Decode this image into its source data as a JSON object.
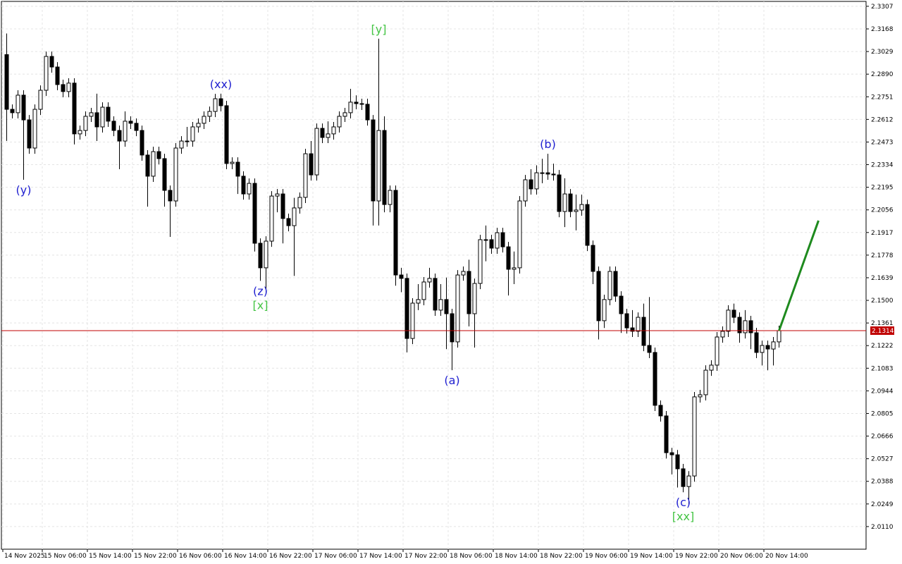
{
  "chart_data": {
    "type": "candlestick",
    "categories": [
      "14 Nov 2025",
      null,
      null,
      null,
      null,
      null,
      null,
      "15 Nov 06:00",
      null,
      null,
      null,
      null,
      null,
      null,
      null,
      "15 Nov 14:00",
      null,
      null,
      null,
      null,
      null,
      null,
      null,
      "15 Nov 22:00",
      null,
      null,
      null,
      null,
      null,
      null,
      null,
      "16 Nov 06:00",
      null,
      null,
      null,
      null,
      null,
      null,
      null,
      "16 Nov 14:00",
      null,
      null,
      null,
      null,
      null,
      null,
      null,
      "16 Nov 22:00",
      null,
      null,
      null,
      null,
      null,
      null,
      null,
      "17 Nov 06:00",
      null,
      null,
      null,
      null,
      null,
      null,
      null,
      "17 Nov 14:00",
      null,
      null,
      null,
      null,
      null,
      null,
      null,
      "17 Nov 22:00",
      null,
      null,
      null,
      null,
      null,
      null,
      null,
      "18 Nov 06:00",
      null,
      null,
      null,
      null,
      null,
      null,
      null,
      "18 Nov 14:00",
      null,
      null,
      null,
      null,
      null,
      null,
      null,
      "18 Nov 22:00",
      null,
      null,
      null,
      null,
      null,
      null,
      null,
      "19 Nov 06:00",
      null,
      null,
      null,
      null,
      null,
      null,
      null,
      "19 Nov 14:00",
      null,
      null,
      null,
      null,
      null,
      null,
      null,
      "19 Nov 22:00",
      null,
      null,
      null,
      null,
      null,
      null,
      null,
      "20 Nov 06:00",
      null,
      null,
      null,
      null,
      null,
      null,
      null,
      "20 Nov 14:00",
      null,
      null
    ],
    "open": [
      2.301,
      2.2674,
      2.2653,
      2.2761,
      2.2609,
      2.2436,
      2.2674,
      2.2791,
      2.2999,
      2.2934,
      2.2826,
      2.2783,
      2.2835,
      2.2523,
      2.2544,
      2.2631,
      2.2653,
      2.2566,
      2.2687,
      2.2601,
      2.2544,
      2.2479,
      2.2601,
      2.2588,
      2.2544,
      2.2393,
      2.2263,
      2.2414,
      2.2371,
      2.2176,
      2.2111,
      2.2436,
      2.2479,
      2.2479,
      2.2566,
      2.2588,
      2.2631,
      2.2661,
      2.2739,
      2.2696,
      2.2341,
      2.2349,
      2.2263,
      2.2154,
      2.2219,
      2.1851,
      2.17,
      2.1864,
      2.2141,
      2.2154,
      2.2003,
      2.1959,
      2.2068,
      2.2133,
      2.2401,
      2.2271,
      2.2557,
      2.2501,
      2.2523,
      2.2566,
      2.2631,
      2.2653,
      2.2718,
      2.2709,
      2.2705,
      2.2609,
      2.2111,
      2.2544,
      2.2089,
      2.2176,
      2.1656,
      2.1635,
      2.1266,
      2.1483,
      2.1505,
      2.1613,
      2.1635,
      2.144,
      2.1505,
      2.1418,
      2.1245,
      2.1656,
      2.1678,
      2.1418,
      2.1604,
      2.1873,
      2.1873,
      2.1821,
      2.1916,
      2.1829,
      2.1691,
      2.17,
      2.2111,
      2.2241,
      2.2185,
      2.2284,
      2.2284,
      2.2276,
      2.2271,
      2.2046,
      2.2154,
      2.2046,
      2.2055,
      2.2089,
      2.1838,
      2.1678,
      2.1375,
      2.1505,
      2.1678,
      2.1526,
      2.1418,
      2.1331,
      2.131,
      2.1396,
      2.1223,
      2.118,
      2.0855,
      2.079,
      2.0564,
      2.0551,
      2.0465,
      2.0356,
      2.0421,
      2.0907,
      2.092,
      2.1071,
      2.1102,
      2.1275,
      2.131,
      2.144,
      2.1396,
      2.1301,
      2.1375,
      2.1301,
      2.118,
      2.1223,
      2.1201,
      2.1245
    ],
    "high": [
      2.314,
      2.2704,
      2.2791,
      2.2791,
      2.2639,
      2.2704,
      2.2821,
      2.3029,
      2.3029,
      2.2964,
      2.2856,
      2.2865,
      2.2865,
      2.2574,
      2.2661,
      2.2683,
      2.277,
      2.2717,
      2.2717,
      2.2631,
      2.2574,
      2.2661,
      2.2631,
      2.2618,
      2.2574,
      2.2423,
      2.2444,
      2.2444,
      2.2401,
      2.2206,
      2.2466,
      2.2509,
      2.2566,
      2.2596,
      2.2618,
      2.2661,
      2.2691,
      2.2769,
      2.277,
      2.2726,
      2.2379,
      2.2379,
      2.2293,
      2.2249,
      2.2249,
      2.1881,
      2.1894,
      2.2171,
      2.2184,
      2.2184,
      2.2033,
      2.213,
      2.2163,
      2.2431,
      2.2479,
      2.2587,
      2.2587,
      2.26,
      2.2596,
      2.2661,
      2.2683,
      2.28,
      2.276,
      2.2739,
      2.2739,
      2.2639,
      2.3108,
      2.2631,
      2.2206,
      2.2206,
      2.17,
      2.1665,
      2.1513,
      2.16,
      2.1643,
      2.17,
      2.1665,
      2.16,
      2.164,
      2.1448,
      2.1686,
      2.1708,
      2.175,
      2.1634,
      2.1903,
      2.196,
      2.1903,
      2.1946,
      2.1946,
      2.1859,
      2.18,
      2.2141,
      2.2271,
      2.2306,
      2.233,
      2.237,
      2.2401,
      2.234,
      2.2301,
      2.225,
      2.2184,
      2.215,
      2.215,
      2.2119,
      2.1868,
      2.1708,
      2.1535,
      2.1708,
      2.1708,
      2.1556,
      2.1448,
      2.144,
      2.1426,
      2.148,
      2.152,
      2.121,
      2.0885,
      2.082,
      2.0594,
      2.0581,
      2.0495,
      2.0451,
      2.0937,
      2.095,
      2.1101,
      2.1132,
      2.1305,
      2.134,
      2.147,
      2.148,
      2.1426,
      2.144,
      2.1405,
      2.1331,
      2.1253,
      2.1253,
      2.1275,
      2.1344
    ],
    "low": [
      2.248,
      2.2618,
      2.2618,
      2.2241,
      2.2401,
      2.2401,
      2.2639,
      2.2756,
      2.2899,
      2.2791,
      2.2748,
      2.2748,
      2.2458,
      2.2488,
      2.2509,
      2.2596,
      2.2479,
      2.2531,
      2.2566,
      2.2509,
      2.2306,
      2.2444,
      2.2553,
      2.2509,
      2.2358,
      2.2076,
      2.2228,
      2.2336,
      2.2076,
      2.189,
      2.2076,
      2.2401,
      2.2444,
      2.2444,
      2.2531,
      2.2553,
      2.2596,
      2.2626,
      2.2661,
      2.2306,
      2.2306,
      2.2154,
      2.2119,
      2.2119,
      2.18,
      2.162,
      2.1548,
      2.1829,
      2.2041,
      2.185,
      2.1924,
      2.165,
      2.2033,
      2.2098,
      2.2236,
      2.2236,
      2.2466,
      2.2466,
      2.2488,
      2.2531,
      2.2596,
      2.2618,
      2.2674,
      2.267,
      2.2574,
      2.196,
      2.196,
      2.2041,
      2.2041,
      2.159,
      2.155,
      2.118,
      2.1231,
      2.144,
      2.147,
      2.1578,
      2.1405,
      2.1405,
      2.12,
      2.1071,
      2.121,
      2.1621,
      2.134,
      2.121,
      2.1569,
      2.174,
      2.1786,
      2.1786,
      2.1794,
      2.153,
      2.16,
      2.1665,
      2.2076,
      2.215,
      2.215,
      2.222,
      2.2241,
      2.2236,
      2.2011,
      2.195,
      2.2011,
      2.193,
      2.202,
      2.1803,
      2.16,
      2.126,
      2.133,
      2.147,
      2.1491,
      2.13,
      2.1296,
      2.1275,
      2.1275,
      2.1188,
      2.1145,
      2.082,
      2.0755,
      2.0529,
      2.043,
      2.035,
      2.0321,
      2.0248,
      2.0386,
      2.0872,
      2.0885,
      2.1036,
      2.1067,
      2.124,
      2.1275,
      2.1361,
      2.124,
      2.1266,
      2.12,
      2.1145,
      2.11,
      2.107,
      2.11,
      2.121
    ],
    "close": [
      2.2674,
      2.2653,
      2.2761,
      2.2609,
      2.2436,
      2.2674,
      2.2791,
      2.2999,
      2.2934,
      2.2826,
      2.2783,
      2.2835,
      2.2523,
      2.2544,
      2.2631,
      2.2653,
      2.2566,
      2.2687,
      2.2601,
      2.2544,
      2.2479,
      2.2601,
      2.2588,
      2.2544,
      2.2393,
      2.2263,
      2.2414,
      2.2371,
      2.2176,
      2.2111,
      2.2436,
      2.2479,
      2.2479,
      2.2566,
      2.2588,
      2.2631,
      2.2661,
      2.2739,
      2.2696,
      2.2341,
      2.2349,
      2.2263,
      2.2154,
      2.2219,
      2.1851,
      2.17,
      2.1864,
      2.2141,
      2.2154,
      2.2003,
      2.1959,
      2.2068,
      2.2133,
      2.2401,
      2.2271,
      2.2557,
      2.2501,
      2.2523,
      2.2566,
      2.2631,
      2.2653,
      2.2718,
      2.2709,
      2.2705,
      2.2609,
      2.2111,
      2.2544,
      2.2089,
      2.2176,
      2.1656,
      2.1635,
      2.1266,
      2.1483,
      2.1505,
      2.1613,
      2.1635,
      2.144,
      2.1505,
      2.1418,
      2.1245,
      2.1656,
      2.1678,
      2.1418,
      2.1604,
      2.1873,
      2.1873,
      2.1821,
      2.1916,
      2.1829,
      2.1691,
      2.17,
      2.2111,
      2.2241,
      2.2185,
      2.2284,
      2.2284,
      2.2276,
      2.2271,
      2.2046,
      2.2154,
      2.2046,
      2.2055,
      2.2089,
      2.1838,
      2.1678,
      2.1375,
      2.1505,
      2.1678,
      2.1526,
      2.1418,
      2.1331,
      2.131,
      2.1396,
      2.1223,
      2.118,
      2.0855,
      2.079,
      2.0564,
      2.0551,
      2.0465,
      2.0356,
      2.0421,
      2.0907,
      2.092,
      2.1071,
      2.1102,
      2.1275,
      2.131,
      2.144,
      2.1396,
      2.1301,
      2.1375,
      2.1301,
      2.118,
      2.1223,
      2.1201,
      2.1245,
      2.1314
    ],
    "bull_color": "#ffffff",
    "bear_color": "#000000",
    "ylim": [
      1.9971,
      2.3337
    ],
    "yticks": [
      2.3307,
      2.3168,
      2.3029,
      {
        "value": 2.289,
        "label": "2.2890"
      },
      2.2751,
      2.2612,
      2.2473,
      2.2334,
      2.2195,
      2.2056,
      2.1917,
      2.1778,
      2.1639,
      {
        "value": 2.15,
        "label": "2.1500"
      },
      2.1361,
      2.1222,
      2.1083,
      2.0944,
      2.0805,
      2.0666,
      2.0527,
      2.0388,
      2.0249,
      {
        "value": 2.011,
        "label": "2.0110"
      }
    ],
    "grid": true,
    "last_price": {
      "value": 2.1314,
      "color": "#c00000"
    },
    "projection": {
      "color": "#1e8a1e",
      "from": [
        137,
        2.1314
      ],
      "to": [
        144,
        2.199
      ]
    },
    "annotations": [
      {
        "text": "(y)",
        "at": 3,
        "position": "below",
        "color": "#2020d0"
      },
      {
        "text": "(xx)",
        "at": 38,
        "position": "above",
        "color": "#2020d0"
      },
      {
        "text": "(z)",
        "at": 45,
        "position": "below",
        "color": "#2020d0"
      },
      {
        "text": "[x]",
        "at": 45,
        "position": "below2",
        "color": "#44c444"
      },
      {
        "text": "[y]",
        "at": 66,
        "position": "above",
        "color": "#44c444"
      },
      {
        "text": "(a)",
        "at": 79,
        "position": "below",
        "color": "#2020d0"
      },
      {
        "text": "(b)",
        "at": 96,
        "position": "above",
        "color": "#2020d0"
      },
      {
        "text": "(c)",
        "at": 120,
        "position": "below",
        "color": "#2020d0"
      },
      {
        "text": "[xx]",
        "at": 120,
        "position": "below2",
        "color": "#44c444"
      }
    ]
  }
}
